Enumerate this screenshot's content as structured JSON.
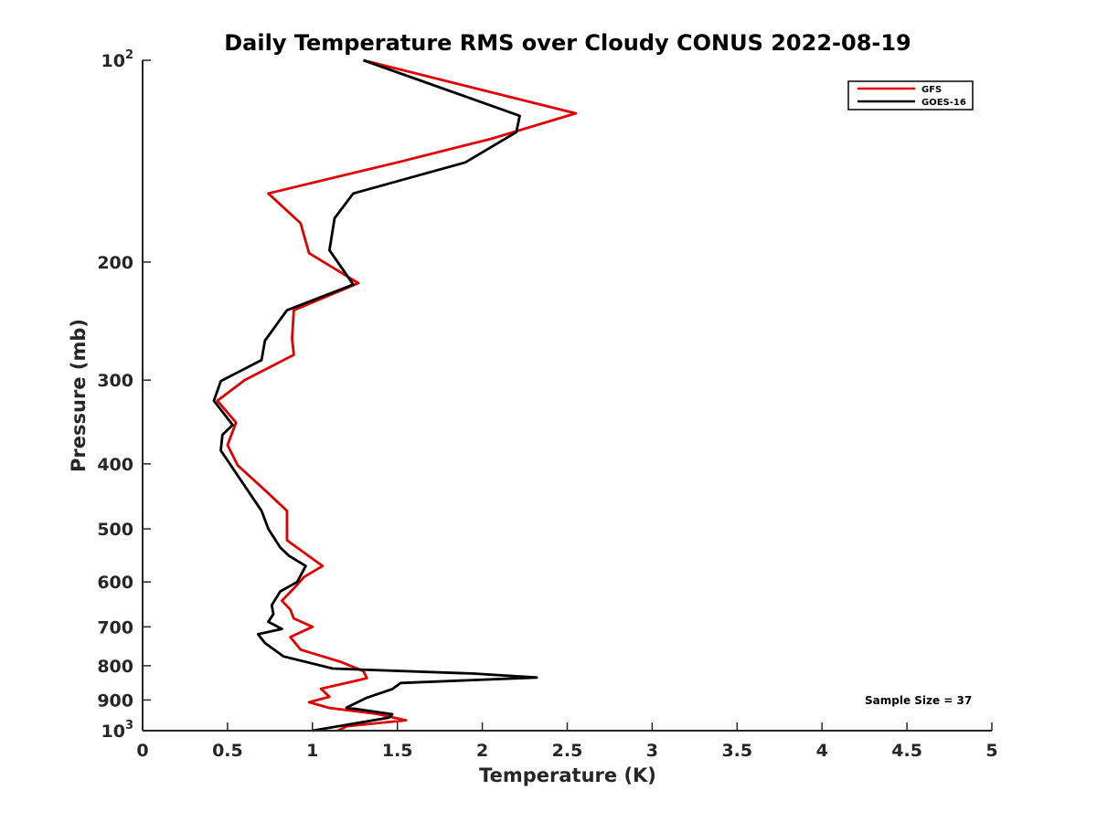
{
  "chart_data": {
    "type": "line",
    "title": "Daily Temperature RMS over Cloudy CONUS 2022-08-19",
    "xlabel": "Temperature (K)",
    "ylabel": "Pressure (mb)",
    "xlim": [
      0,
      5
    ],
    "ylim": [
      100,
      1000
    ],
    "y_scale": "log",
    "y_reversed": true,
    "x_ticks": [
      "0",
      "0.5",
      "1",
      "1.5",
      "2",
      "2.5",
      "3",
      "3.5",
      "4",
      "4.5",
      "5"
    ],
    "y_ticks": [
      {
        "value": 100,
        "label": "10",
        "exp": "2"
      },
      {
        "value": 200,
        "label": "200",
        "exp": ""
      },
      {
        "value": 300,
        "label": "300",
        "exp": ""
      },
      {
        "value": 400,
        "label": "400",
        "exp": ""
      },
      {
        "value": 500,
        "label": "500",
        "exp": ""
      },
      {
        "value": 600,
        "label": "600",
        "exp": ""
      },
      {
        "value": 700,
        "label": "700",
        "exp": ""
      },
      {
        "value": 800,
        "label": "800",
        "exp": ""
      },
      {
        "value": 900,
        "label": "900",
        "exp": ""
      },
      {
        "value": 1000,
        "label": "10",
        "exp": "3"
      }
    ],
    "grid": false,
    "legend_position": "top-right",
    "annotation": "Sample Size = 37",
    "series": [
      {
        "name": "GFS",
        "color": "#e00000",
        "points": [
          [
            1.3,
            100
          ],
          [
            2.55,
            120
          ],
          [
            2.05,
            131
          ],
          [
            1.5,
            142
          ],
          [
            0.74,
            158
          ],
          [
            0.93,
            175
          ],
          [
            0.98,
            194
          ],
          [
            1.27,
            215
          ],
          [
            0.89,
            236
          ],
          [
            0.88,
            260
          ],
          [
            0.89,
            275
          ],
          [
            0.6,
            300
          ],
          [
            0.44,
            322
          ],
          [
            0.55,
            347
          ],
          [
            0.5,
            375
          ],
          [
            0.56,
            402
          ],
          [
            0.73,
            440
          ],
          [
            0.85,
            470
          ],
          [
            0.85,
            520
          ],
          [
            1.06,
            568
          ],
          [
            0.95,
            590
          ],
          [
            0.9,
            610
          ],
          [
            0.82,
            640
          ],
          [
            0.87,
            660
          ],
          [
            0.89,
            680
          ],
          [
            1.0,
            700
          ],
          [
            0.87,
            725
          ],
          [
            0.93,
            757
          ],
          [
            1.17,
            790
          ],
          [
            1.3,
            815
          ],
          [
            1.32,
            835
          ],
          [
            1.25,
            843
          ],
          [
            1.05,
            866
          ],
          [
            1.1,
            890
          ],
          [
            0.98,
            907
          ],
          [
            1.1,
            925
          ],
          [
            1.38,
            944
          ],
          [
            1.55,
            965
          ],
          [
            1.2,
            985
          ],
          [
            1.15,
            1000
          ]
        ]
      },
      {
        "name": "GOES-16",
        "color": "#000000",
        "points": [
          [
            1.3,
            100
          ],
          [
            2.22,
            121
          ],
          [
            2.2,
            128
          ],
          [
            1.9,
            142
          ],
          [
            1.24,
            158
          ],
          [
            1.13,
            172
          ],
          [
            1.1,
            192
          ],
          [
            1.24,
            216
          ],
          [
            0.85,
            236
          ],
          [
            0.72,
            262
          ],
          [
            0.7,
            280
          ],
          [
            0.46,
            301
          ],
          [
            0.42,
            322
          ],
          [
            0.53,
            350
          ],
          [
            0.47,
            362
          ],
          [
            0.46,
            382
          ],
          [
            0.7,
            470
          ],
          [
            0.74,
            500
          ],
          [
            0.81,
            533
          ],
          [
            0.86,
            548
          ],
          [
            0.96,
            568
          ],
          [
            0.91,
            600
          ],
          [
            0.81,
            620
          ],
          [
            0.76,
            650
          ],
          [
            0.77,
            670
          ],
          [
            0.74,
            688
          ],
          [
            0.82,
            705
          ],
          [
            0.68,
            718
          ],
          [
            0.72,
            740
          ],
          [
            0.83,
            775
          ],
          [
            1.12,
            808
          ],
          [
            1.95,
            822
          ],
          [
            2.32,
            833
          ],
          [
            1.52,
            849
          ],
          [
            1.47,
            867
          ],
          [
            1.32,
            893
          ],
          [
            1.2,
            924
          ],
          [
            1.47,
            945
          ],
          [
            1.45,
            956
          ],
          [
            1.0,
            1000
          ]
        ]
      }
    ]
  }
}
